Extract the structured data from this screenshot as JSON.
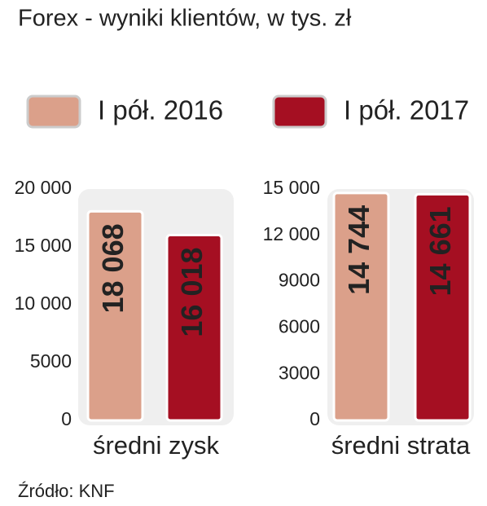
{
  "title": "Forex - wyniki klientów, w tys. zł",
  "source": "Źródło: KNF",
  "chart_data": [
    {
      "type": "bar",
      "categories": [
        "średni zysk"
      ],
      "series": [
        {
          "name": "I pół. 2016",
          "color": "#dba08a",
          "values": [
            18068
          ],
          "value_labels": [
            "18 068"
          ]
        },
        {
          "name": "I pół. 2017",
          "color": "#a50f22",
          "values": [
            16018
          ],
          "value_labels": [
            "16 018"
          ]
        }
      ],
      "ylim": [
        0,
        20000
      ],
      "yticks": [
        0,
        5000,
        {
          "value": 10000,
          "label": "10 000"
        },
        {
          "value": 15000,
          "label": "15 000"
        },
        {
          "value": 20000,
          "label": "20 000"
        }
      ]
    },
    {
      "type": "bar",
      "categories": [
        "średni strata"
      ],
      "series": [
        {
          "color": "#dba08a",
          "values": [
            14744
          ],
          "value_labels": [
            "14 744"
          ]
        },
        {
          "color": "#a50f22",
          "values": [
            14661
          ],
          "value_labels": [
            "14 661"
          ]
        }
      ],
      "ylim": [
        0,
        15000
      ],
      "yticks": [
        0,
        3000,
        6000,
        9000,
        {
          "value": 12000,
          "label": "12 000"
        },
        {
          "value": 15000,
          "label": "15 000"
        }
      ]
    }
  ]
}
